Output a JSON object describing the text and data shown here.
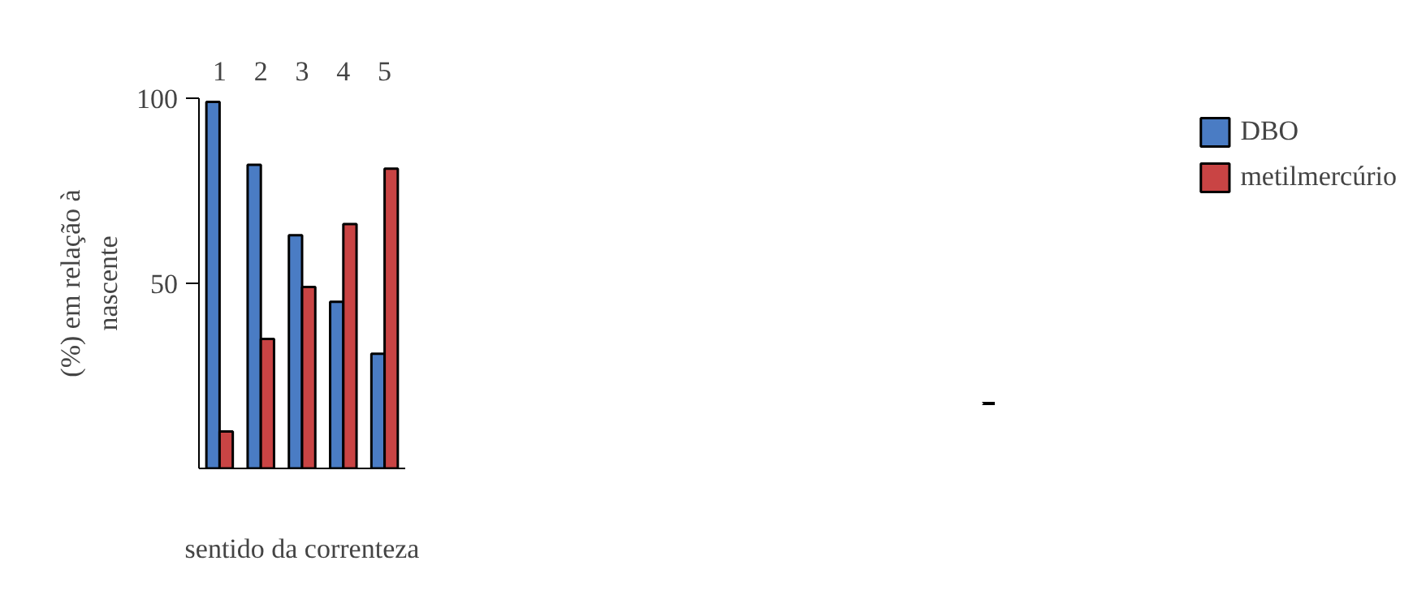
{
  "chart_data": {
    "type": "bar",
    "categories": [
      "1",
      "2",
      "3",
      "4",
      "5"
    ],
    "series": [
      {
        "name": "DBO",
        "color": "#4a7cc4",
        "values": [
          99,
          82,
          63,
          45,
          31
        ]
      },
      {
        "name": "metilmercúrio",
        "color": "#c94444",
        "values": [
          10,
          35,
          49,
          66,
          81
        ]
      }
    ],
    "ylabel": "(%) em relação à\nnascente",
    "xlabel": "sentido da correnteza",
    "ylim": [
      0,
      100
    ],
    "yticks": [
      50,
      100
    ],
    "grid": false,
    "legend": "top right"
  }
}
